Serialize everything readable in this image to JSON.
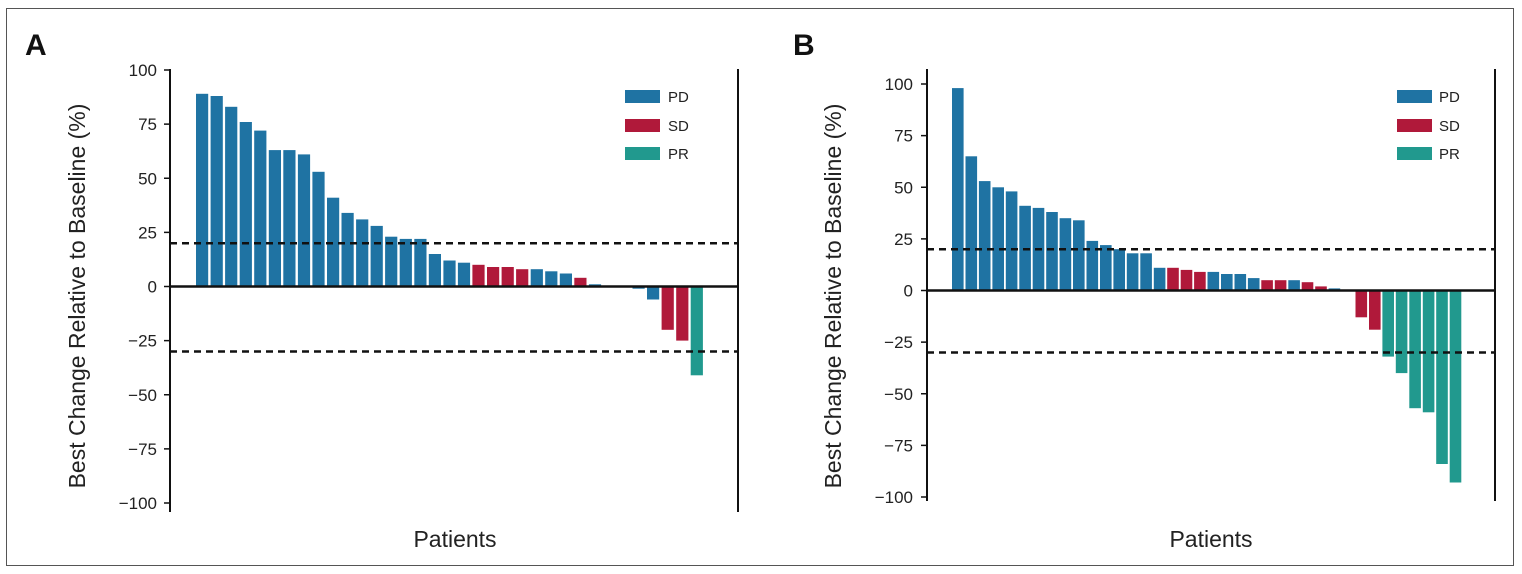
{
  "colors": {
    "PD": "#1f73a3",
    "SD": "#b0193a",
    "PR": "#21998e"
  },
  "chart_data": [
    {
      "type": "bar",
      "panel": "A",
      "ylabel": "Best Change Relative to Baseline (%)",
      "xlabel": "Patients",
      "ylim": [
        -100,
        100
      ],
      "yticks": [
        "100",
        "75",
        "50",
        "25",
        "0",
        "−25",
        "−50",
        "−75",
        "−100"
      ],
      "ytick_values": [
        100,
        75,
        50,
        25,
        0,
        -25,
        -50,
        -75,
        -100
      ],
      "reference_lines": [
        20,
        -30
      ],
      "legend": [
        "PD",
        "SD",
        "PR"
      ],
      "values": [
        89,
        88,
        83,
        76,
        72,
        63,
        63,
        61,
        53,
        41,
        34,
        31,
        28,
        23,
        22,
        22,
        15,
        12,
        11,
        10,
        9,
        9,
        8,
        8,
        7,
        6,
        4,
        1,
        0,
        0,
        -1,
        -6,
        -20,
        -25,
        -41
      ],
      "categories": [
        "PD",
        "PD",
        "PD",
        "PD",
        "PD",
        "PD",
        "PD",
        "PD",
        "PD",
        "PD",
        "PD",
        "PD",
        "PD",
        "PD",
        "PD",
        "PD",
        "PD",
        "PD",
        "PD",
        "SD",
        "SD",
        "SD",
        "SD",
        "PD",
        "PD",
        "PD",
        "SD",
        "PD",
        "PD",
        "PD",
        "PD",
        "PD",
        "SD",
        "SD",
        "PR"
      ]
    },
    {
      "type": "bar",
      "panel": "B",
      "ylabel": "Best Change Relative to Baseline (%)",
      "xlabel": "Patients",
      "ylim": [
        -100,
        100
      ],
      "yticks": [
        "100",
        "75",
        "50",
        "25",
        "0",
        "−25",
        "−50",
        "−75",
        "−100"
      ],
      "ytick_values": [
        100,
        75,
        50,
        25,
        0,
        -25,
        -50,
        -75,
        -100
      ],
      "reference_lines": [
        20,
        -30
      ],
      "legend": [
        "PD",
        "SD",
        "PR"
      ],
      "values": [
        98,
        65,
        53,
        50,
        48,
        41,
        40,
        38,
        35,
        34,
        24,
        22,
        20,
        18,
        18,
        11,
        11,
        10,
        9,
        9,
        8,
        8,
        6,
        5,
        5,
        5,
        4,
        2,
        1,
        0,
        -13,
        -19,
        -32,
        -40,
        -57,
        -59,
        -84,
        -93
      ],
      "categories": [
        "PD",
        "PD",
        "PD",
        "PD",
        "PD",
        "PD",
        "PD",
        "PD",
        "PD",
        "PD",
        "PD",
        "PD",
        "PD",
        "PD",
        "PD",
        "PD",
        "SD",
        "SD",
        "SD",
        "PD",
        "PD",
        "PD",
        "PD",
        "SD",
        "SD",
        "PD",
        "SD",
        "SD",
        "PD",
        "PD",
        "SD",
        "SD",
        "PR",
        "PR",
        "PR",
        "PR",
        "PR",
        "PR"
      ]
    }
  ]
}
